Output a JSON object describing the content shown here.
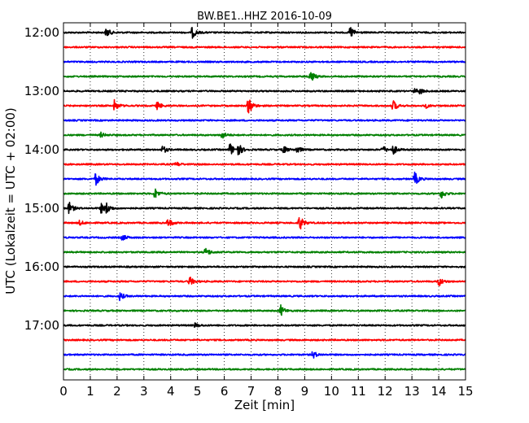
{
  "chart_data": {
    "type": "line",
    "title": "BW.BE1..HHZ 2016-10-09",
    "xlabel": "Zeit  [min]",
    "ylabel": "UTC (Lokalzeit = UTC + 02:00)",
    "xlim": [
      0,
      15
    ],
    "x_ticks": [
      "0",
      "1",
      "2",
      "3",
      "4",
      "5",
      "6",
      "7",
      "8",
      "9",
      "10",
      "11",
      "12",
      "13",
      "14",
      "15"
    ],
    "y_tick_labels": [
      "12:00",
      "13:00",
      "14:00",
      "15:00",
      "16:00",
      "17:00"
    ],
    "grid": true,
    "trace_colors": [
      "#000000",
      "#ff0000",
      "#0000ff",
      "#008000"
    ],
    "traces": [
      {
        "start": "12:00",
        "events": [
          [
            1.6,
            0.6
          ],
          [
            4.8,
            0.7
          ],
          [
            10.7,
            0.8
          ]
        ]
      },
      {
        "start": "12:15",
        "events": []
      },
      {
        "start": "12:30",
        "events": []
      },
      {
        "start": "12:45",
        "events": [
          [
            9.2,
            0.9
          ]
        ]
      },
      {
        "start": "13:00",
        "events": [
          [
            13.1,
            0.3
          ],
          [
            13.3,
            0.3
          ]
        ]
      },
      {
        "start": "13:15",
        "events": [
          [
            1.9,
            0.7
          ],
          [
            3.5,
            0.5
          ],
          [
            6.9,
            1.2
          ],
          [
            12.3,
            0.7
          ],
          [
            13.5,
            0.3
          ]
        ]
      },
      {
        "start": "13:30",
        "events": []
      },
      {
        "start": "13:45",
        "events": [
          [
            1.4,
            0.3
          ],
          [
            5.9,
            0.5
          ]
        ]
      },
      {
        "start": "14:00",
        "events": [
          [
            3.7,
            0.5
          ],
          [
            6.2,
            0.9
          ],
          [
            6.5,
            0.9
          ],
          [
            8.2,
            0.5
          ],
          [
            8.7,
            0.5
          ],
          [
            11.9,
            0.5
          ],
          [
            12.3,
            0.6
          ]
        ]
      },
      {
        "start": "14:15",
        "events": [
          [
            4.2,
            0.3
          ]
        ]
      },
      {
        "start": "14:30",
        "events": [
          [
            1.2,
            0.8
          ],
          [
            13.1,
            0.9
          ]
        ]
      },
      {
        "start": "14:45",
        "events": [
          [
            3.4,
            0.7
          ],
          [
            14.1,
            0.6
          ]
        ]
      },
      {
        "start": "15:00",
        "events": [
          [
            0.2,
            0.8
          ],
          [
            1.4,
            0.6
          ],
          [
            1.6,
            0.6
          ]
        ]
      },
      {
        "start": "15:15",
        "events": [
          [
            0.6,
            0.3
          ],
          [
            3.9,
            0.6
          ],
          [
            8.8,
            1.0
          ]
        ]
      },
      {
        "start": "15:30",
        "events": [
          [
            2.2,
            0.4
          ]
        ]
      },
      {
        "start": "15:45",
        "events": [
          [
            5.3,
            0.6
          ]
        ]
      },
      {
        "start": "16:00",
        "events": []
      },
      {
        "start": "16:15",
        "events": [
          [
            4.7,
            0.6
          ],
          [
            14.0,
            0.6
          ]
        ]
      },
      {
        "start": "16:30",
        "events": [
          [
            2.1,
            0.5
          ]
        ]
      },
      {
        "start": "16:45",
        "events": [
          [
            8.1,
            0.7
          ]
        ]
      },
      {
        "start": "17:00",
        "events": [
          [
            4.9,
            0.3
          ]
        ]
      },
      {
        "start": "17:15",
        "events": []
      },
      {
        "start": "17:30",
        "events": [
          [
            9.3,
            0.5
          ]
        ]
      },
      {
        "start": "17:45",
        "events": []
      }
    ]
  }
}
